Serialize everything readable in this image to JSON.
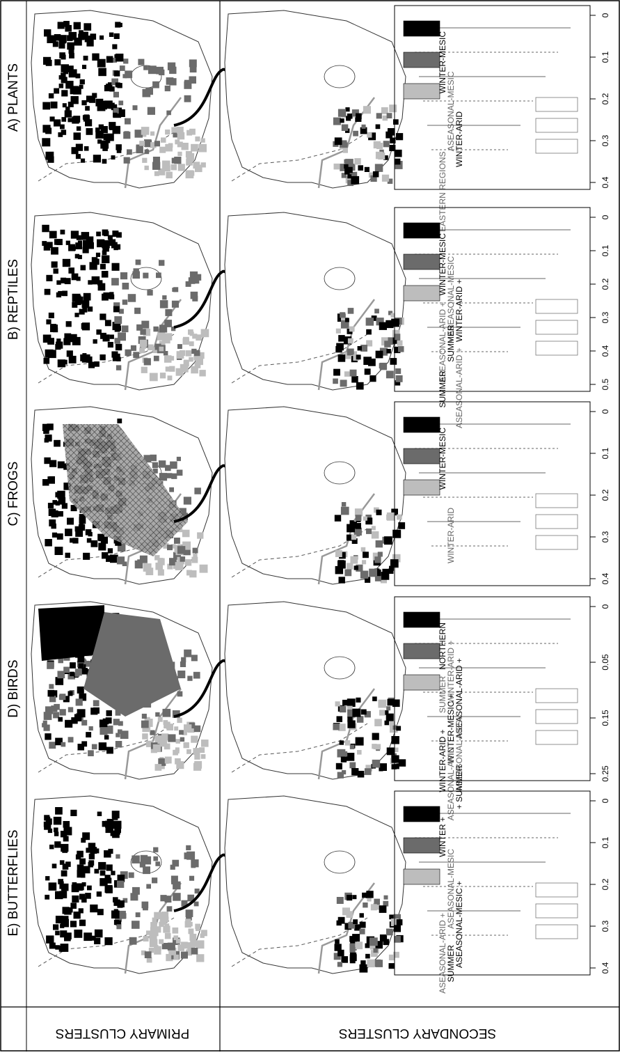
{
  "row_labels": {
    "primary": "PRIMARY CLUSTERS",
    "secondary": "SECONDARY CLUSTERS"
  },
  "panels": [
    {
      "id": "plants",
      "title": "A) PLANTS",
      "axis_ticks": [
        "0",
        "0.1",
        "0.2",
        "0.3",
        "0.4"
      ],
      "labels": [
        "WINTER-MESIC",
        "ASEASONAL-MESIC",
        "WINTER-ARID",
        "EASTERN REGIONS"
      ]
    },
    {
      "id": "reptiles",
      "title": "B) REPTILES",
      "axis_ticks": [
        "0",
        "0.1",
        "0.2",
        "0.3",
        "0.4",
        "0.5"
      ],
      "labels": [
        "WINTER-MESIC",
        "+ ASEASONAL-MESIC",
        "WINTER-ARID +",
        "ASEASONAL-ARID +",
        "SUMMER",
        "ASEASONAL-ARID +",
        "SUMMER"
      ]
    },
    {
      "id": "frogs",
      "title": "C) FROGS",
      "axis_ticks": [
        "0",
        "0.1",
        "0.2",
        "0.3",
        "0.4"
      ],
      "labels": [
        "WINTER-MESIC",
        "WINTER-ARID"
      ]
    },
    {
      "id": "birds",
      "title": "D) BIRDS",
      "axis_ticks": [
        "0",
        "0.05",
        "0.15",
        "0.25"
      ],
      "labels": [
        "NORTHERN",
        "WINTER-ARID +",
        "ASEASONAL-ARID +",
        "SUMMER",
        "WINTER-MESIC +",
        "ASEASONAL-MESIC",
        "WINTER-ARID +",
        "ASEASONAL-ARID",
        "+ SUMMER"
      ]
    },
    {
      "id": "butterflies",
      "title": "E) BUTTERFLIES",
      "axis_ticks": [
        "0",
        "0.1",
        "0.2",
        "0.3",
        "0.4"
      ],
      "labels": [
        "WINTER +",
        "ASEASONAL-MESIC",
        "ASEASONAL-MESIC +",
        "ASEASONAL-ARID +",
        "SUMMER"
      ]
    }
  ],
  "colors": {
    "black": "#000000",
    "dark_gray": "#6b6b6b",
    "light_gray": "#bdbdbd",
    "outline": "#333333"
  }
}
